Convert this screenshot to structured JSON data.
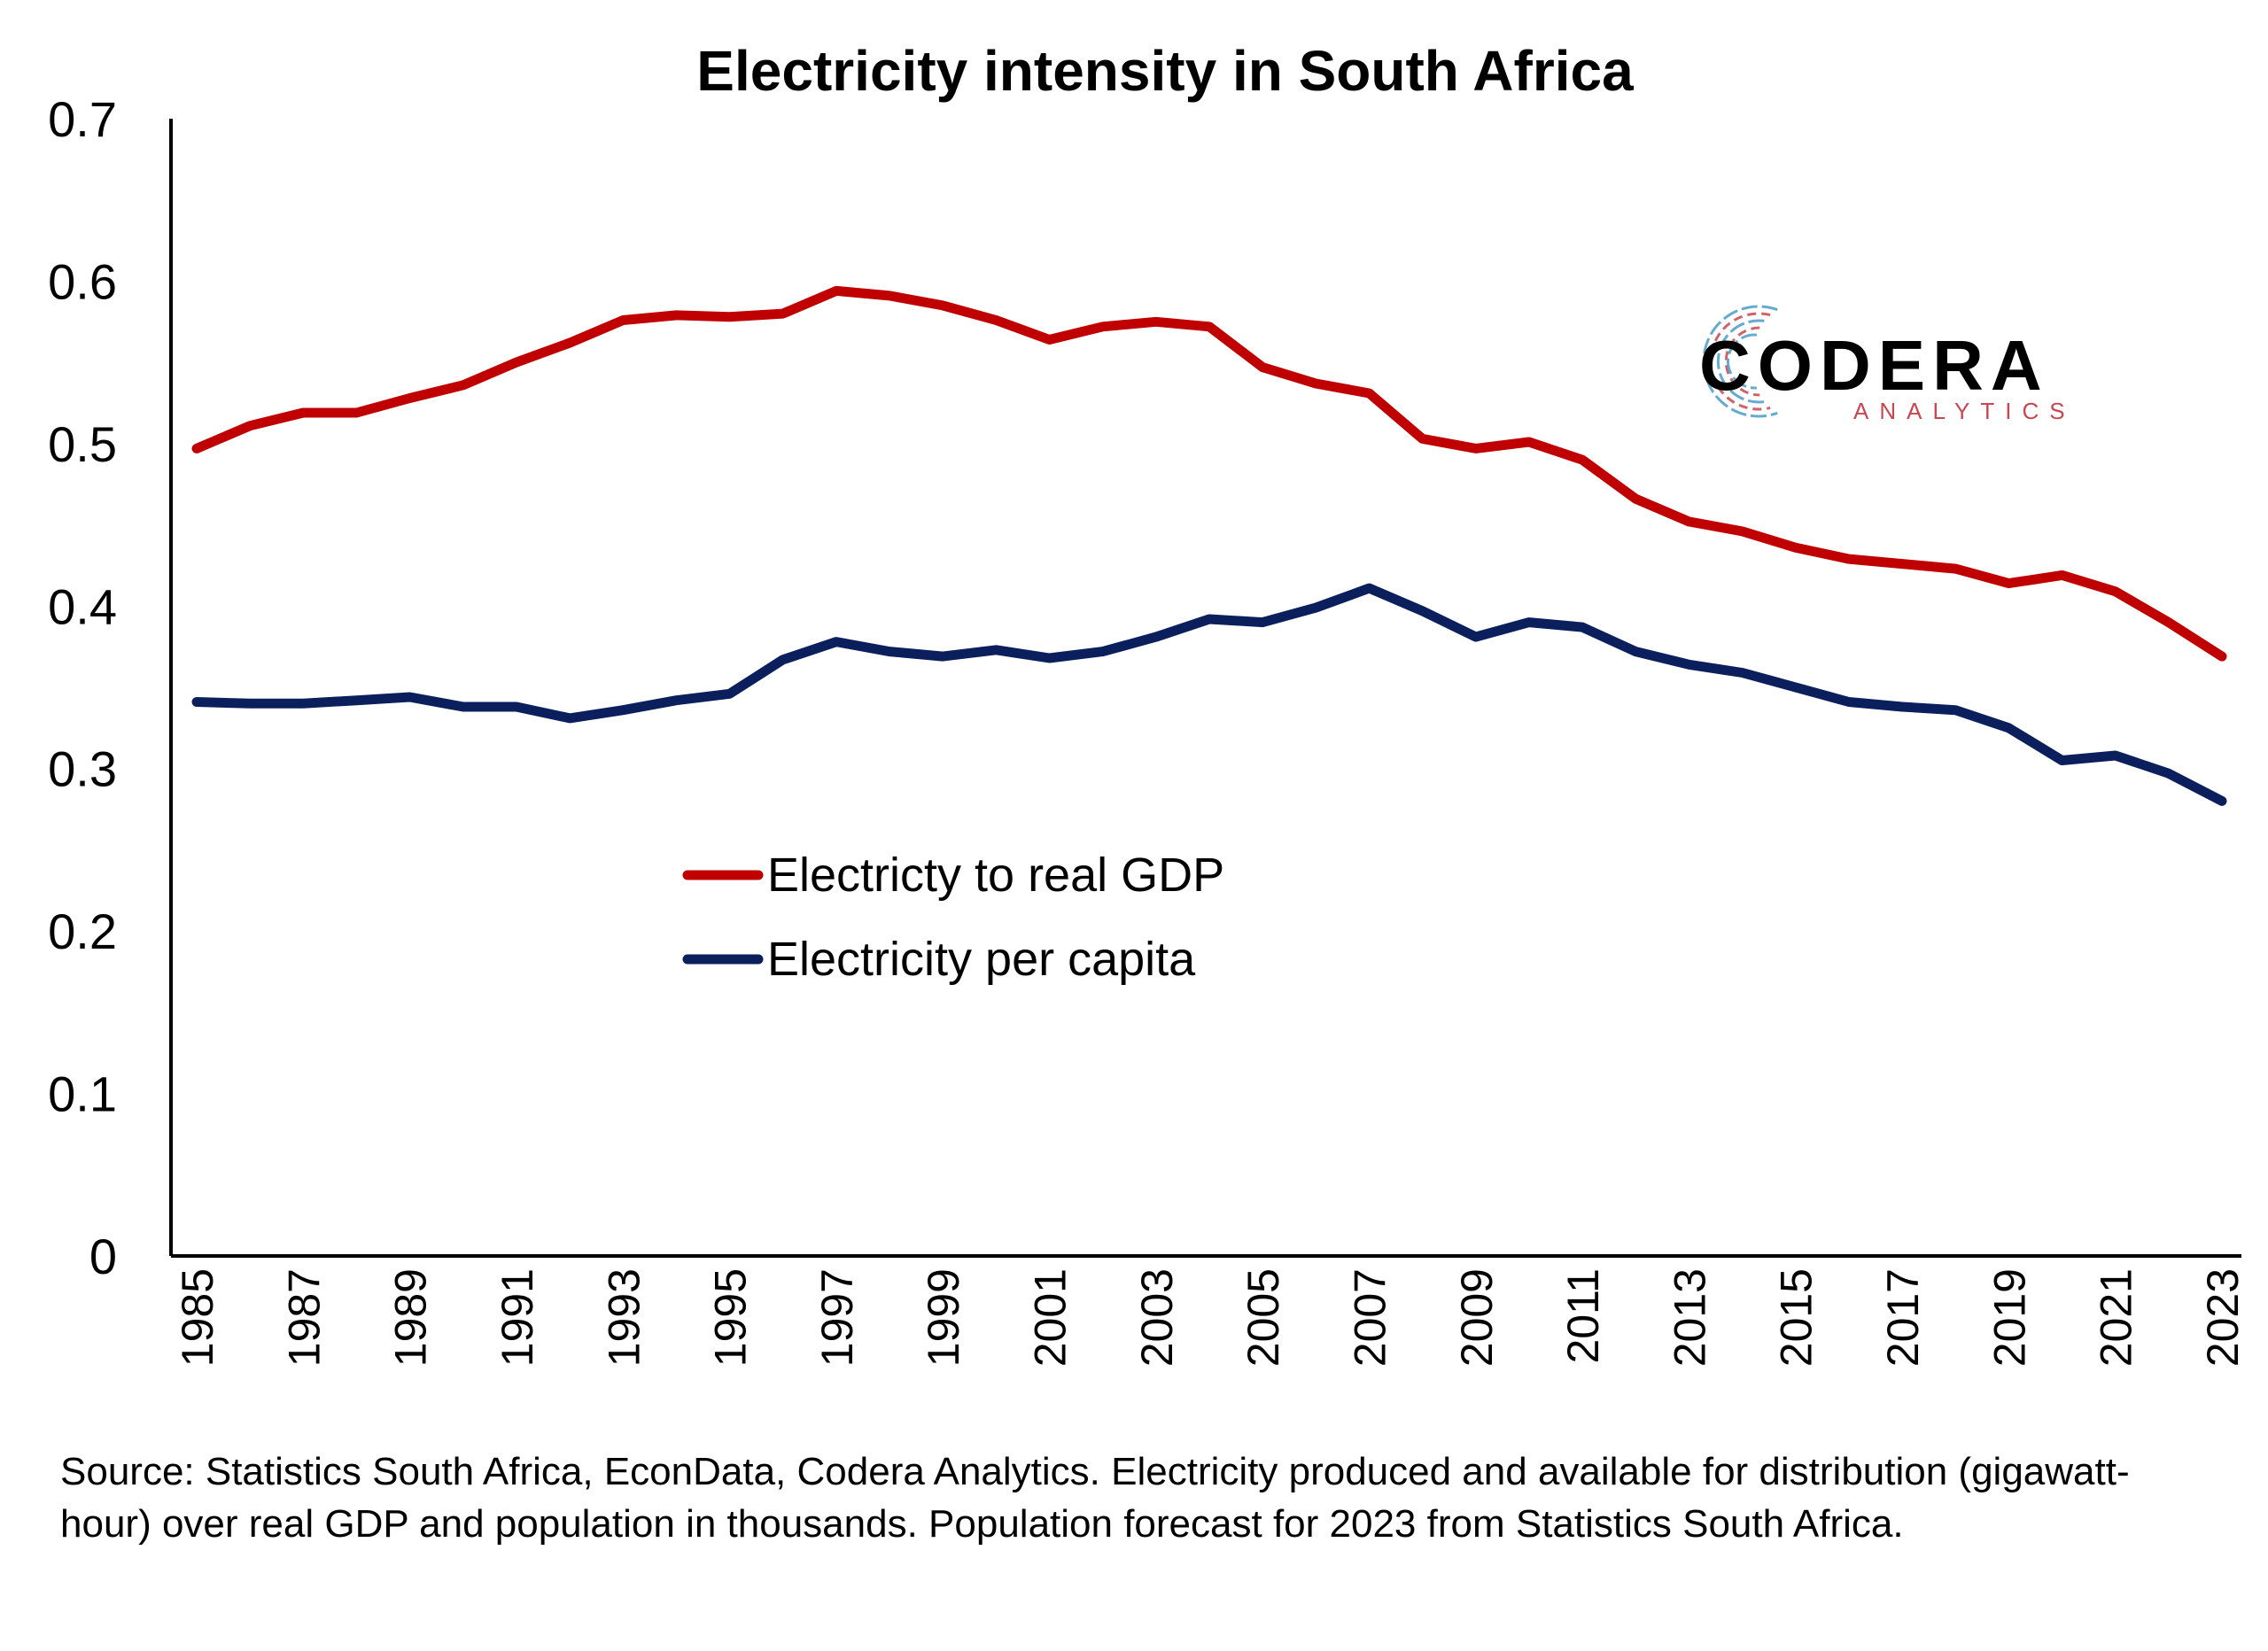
{
  "chart_data": {
    "type": "line",
    "title": "Electricity intensity in South Africa",
    "xlabel": "",
    "ylabel": "",
    "ylim": [
      0,
      0.7
    ],
    "yticks": [
      "0",
      "0.1",
      "0.2",
      "0.3",
      "0.4",
      "0.5",
      "0.6",
      "0.7"
    ],
    "x": [
      1985,
      1986,
      1987,
      1988,
      1989,
      1990,
      1991,
      1992,
      1993,
      1994,
      1995,
      1996,
      1997,
      1998,
      1999,
      2000,
      2001,
      2002,
      2003,
      2004,
      2005,
      2006,
      2007,
      2008,
      2009,
      2010,
      2011,
      2012,
      2013,
      2014,
      2015,
      2016,
      2017,
      2018,
      2019,
      2020,
      2021,
      2022,
      2023
    ],
    "xticks": [
      "1985",
      "1987",
      "1989",
      "1991",
      "1993",
      "1995",
      "1997",
      "1999",
      "2001",
      "2003",
      "2005",
      "2007",
      "2009",
      "2011",
      "2013",
      "2015",
      "2017",
      "2019",
      "2021",
      "2023"
    ],
    "grid": false,
    "legend_position": "center-left",
    "series": [
      {
        "name": "Electricty to real GDP",
        "color": "#c00000",
        "values": [
          0.497,
          0.511,
          0.519,
          0.519,
          0.528,
          0.536,
          0.55,
          0.562,
          0.576,
          0.579,
          0.578,
          0.58,
          0.594,
          0.591,
          0.585,
          0.576,
          0.564,
          0.572,
          0.575,
          0.572,
          0.547,
          0.537,
          0.531,
          0.503,
          0.497,
          0.501,
          0.49,
          0.466,
          0.452,
          0.446,
          0.436,
          0.429,
          0.426,
          0.423,
          0.414,
          0.419,
          0.409,
          0.39,
          0.369
        ]
      },
      {
        "name": "Electricity per capita",
        "color": "#0a1f5c",
        "values": [
          0.341,
          0.34,
          0.34,
          0.342,
          0.344,
          0.338,
          0.338,
          0.331,
          0.336,
          0.342,
          0.346,
          0.367,
          0.378,
          0.372,
          0.369,
          0.373,
          0.368,
          0.372,
          0.381,
          0.392,
          0.39,
          0.399,
          0.411,
          0.397,
          0.381,
          0.39,
          0.387,
          0.372,
          0.364,
          0.359,
          0.35,
          0.341,
          0.338,
          0.336,
          0.325,
          0.305,
          0.308,
          0.297,
          0.28
        ]
      }
    ]
  },
  "logo": {
    "name": "CODERA",
    "tagline": "ANALYTICS",
    "color_main": "#000000",
    "color_sub_left": "#c8464f",
    "color_sub_right": "#4a9cc9"
  },
  "source": {
    "text": "Source: Statistics South Africa, EconData, Codera Analytics. Electricity produced and available for distribution (gigawatt-hour) over real GDP and population in thousands. Population forecast for 2023 from Statistics South Africa."
  }
}
